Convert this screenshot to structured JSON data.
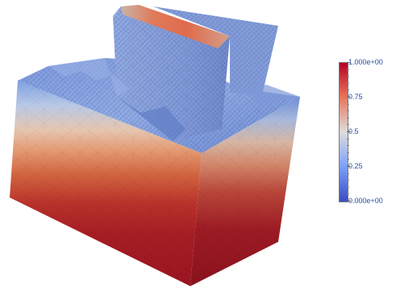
{
  "scalar_bar": {
    "max_label": "1.000e+00",
    "min_label": "0.000e+00",
    "ticks": [
      "0.75",
      "0.5",
      "0.25"
    ],
    "colors": {
      "high": "#b40426",
      "mid": "#dddddd",
      "low": "#3b4cc0"
    }
  },
  "scene": {
    "background": "#ffffff"
  }
}
